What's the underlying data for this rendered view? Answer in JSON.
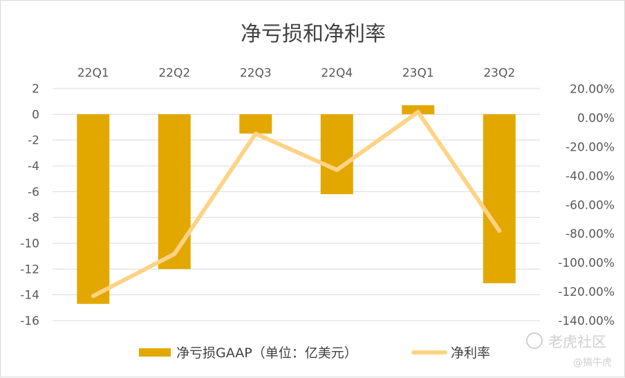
{
  "chart_data": {
    "type": "bar",
    "title": "净亏损和净利率",
    "categories": [
      "22Q1",
      "22Q2",
      "22Q3",
      "22Q4",
      "23Q1",
      "23Q2"
    ],
    "series": [
      {
        "name": "净亏损GAAP（单位：亿美元）",
        "type": "bar",
        "axis": "left",
        "color": "#E2A800",
        "values": [
          -14.7,
          -12.0,
          -1.5,
          -6.2,
          0.7,
          -13.1
        ]
      },
      {
        "name": "净利率",
        "type": "line",
        "axis": "right",
        "color": "#FFD385",
        "values": [
          -123.0,
          -94.0,
          -11.0,
          -36.0,
          4.0,
          -78.0
        ]
      }
    ],
    "y_left": {
      "min": -16,
      "max": 2,
      "step": 2,
      "ticks": [
        "2",
        "0",
        "-2",
        "-4",
        "-6",
        "-8",
        "-10",
        "-12",
        "-14",
        "-16"
      ]
    },
    "y_right": {
      "min": -140,
      "max": 20,
      "step": 20,
      "ticks": [
        "20.00%",
        "0.00%",
        "-20.00%",
        "-40.00%",
        "-60.00%",
        "-80.00%",
        "-100.00%",
        "-120.00%",
        "-140.00%"
      ]
    },
    "x_axis_position": "top",
    "grid": true,
    "legend": "bottom"
  },
  "watermark": {
    "main": "老虎社区",
    "sub": "@搞牛虎"
  }
}
